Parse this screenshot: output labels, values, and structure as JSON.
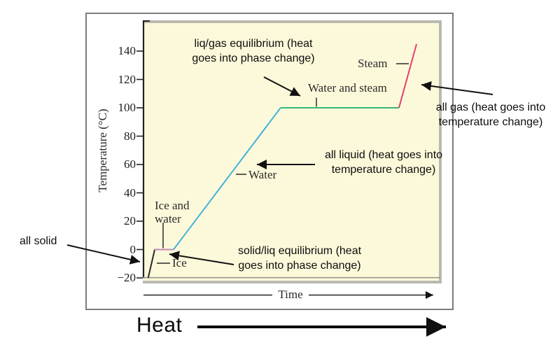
{
  "figure": {
    "heat_label": "Heat"
  },
  "axes": {
    "y_label": "Temperature (°C)",
    "x_label": "Time"
  },
  "curve_labels": {
    "steam": "Steam",
    "water_and_steam": "Water and steam",
    "water": "Water",
    "ice_and_water": "Ice and water",
    "ice": "Ice"
  },
  "annotations": {
    "liq_gas": {
      "lines": [
        "liq/gas equilibrium (heat",
        "goes into phase change)"
      ]
    },
    "all_gas": {
      "lines": [
        "all gas (heat goes into",
        "temperature change)"
      ]
    },
    "all_liquid": {
      "lines": [
        "all liquid (heat goes into",
        "temperature change)"
      ]
    },
    "all_solid": {
      "lines": [
        "all solid"
      ]
    },
    "solid_liq": {
      "lines": [
        "solid/liq equilibrium (heat",
        "goes into phase change)"
      ]
    }
  },
  "colors": {
    "plot_background": "#fcf9da",
    "plot_frame": "#b9b9b0",
    "axis": "#222222",
    "arrow": "#111111",
    "ice": "#2b2b2b",
    "ice_and_water": "#c286be",
    "water": "#41b3d6",
    "water_and_steam": "#35b877",
    "steam": "#e2406e"
  },
  "chart_data": {
    "type": "line",
    "xlabel": "Time",
    "ylabel": "Temperature (°C)",
    "x_axis_numeric": false,
    "ylim": [
      -20,
      160
    ],
    "yticks": [
      140,
      120,
      100,
      80,
      60,
      40,
      20,
      0,
      -20
    ],
    "grid": false,
    "segments": [
      {
        "name": "Ice",
        "phase": "all solid (heat goes into temperature change)",
        "color": "#2b2b2b",
        "points": [
          [
            0.18,
            -20
          ],
          [
            0.4,
            0
          ]
        ]
      },
      {
        "name": "Ice and water",
        "phase": "solid/liq equilibrium (heat goes into phase change)",
        "color": "#c286be",
        "points": [
          [
            0.4,
            0
          ],
          [
            1.03,
            0
          ]
        ]
      },
      {
        "name": "Water",
        "phase": "all liquid (heat goes into temperature change)",
        "color": "#41b3d6",
        "points": [
          [
            1.03,
            0
          ],
          [
            4.62,
            100
          ]
        ]
      },
      {
        "name": "Water and steam",
        "phase": "liq/gas equilibrium (heat goes into phase change)",
        "color": "#35b877",
        "points": [
          [
            4.62,
            100
          ],
          [
            8.59,
            100
          ]
        ]
      },
      {
        "name": "Steam",
        "phase": "all gas (heat goes into temperature change)",
        "color": "#e2406e",
        "points": [
          [
            8.59,
            100
          ],
          [
            9.18,
            145
          ]
        ]
      }
    ]
  }
}
